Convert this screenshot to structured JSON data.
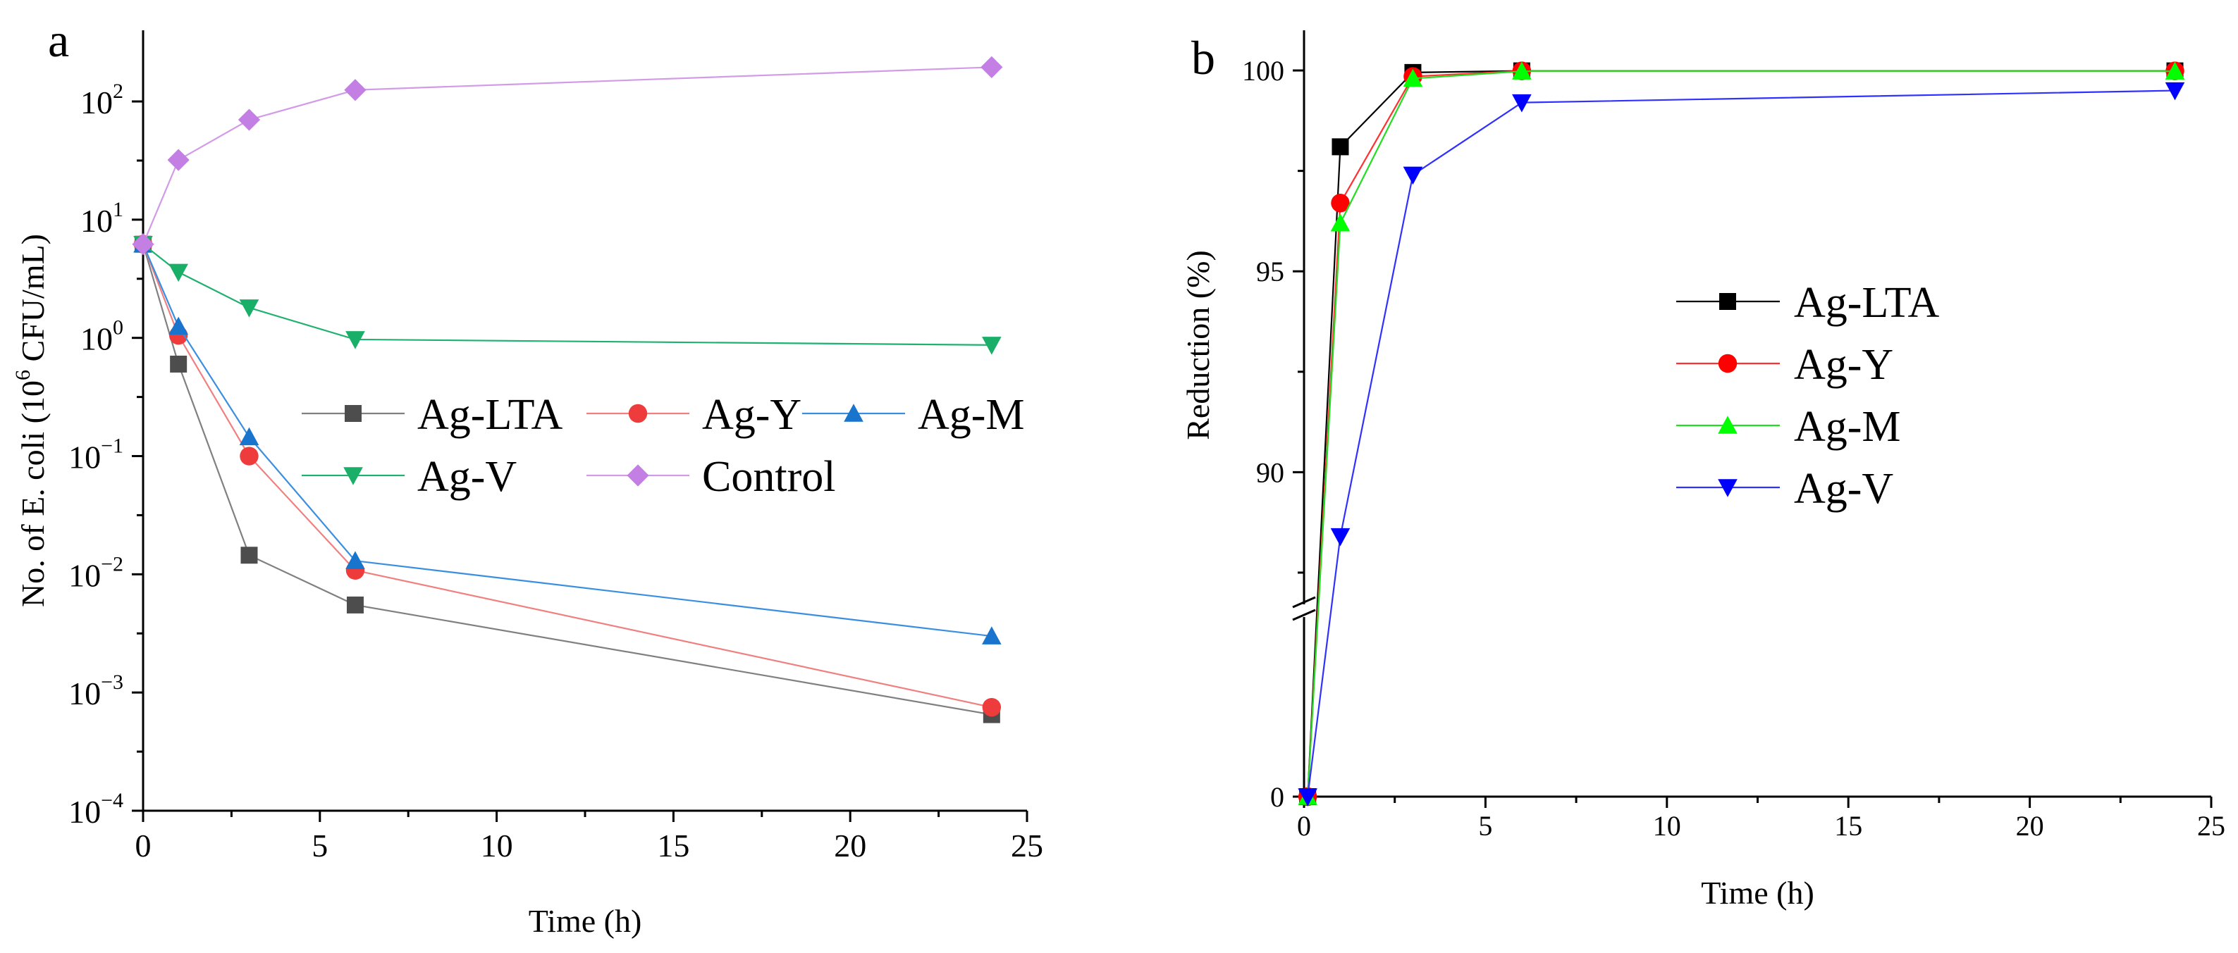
{
  "chart_data": [
    {
      "panel_label": "a",
      "type": "line",
      "y_scale": "log",
      "xlabel": "Time (h)",
      "ylabel_prefix": "No. of E. coli (10",
      "ylabel_sup": "6",
      "ylabel_suffix": " CFU/mL)",
      "xlim": [
        0,
        25
      ],
      "ylim": [
        0.0001,
        400
      ],
      "x_ticks": [
        0,
        5,
        10,
        15,
        20,
        25
      ],
      "x_tick_labels": [
        "0",
        "5",
        "10",
        "15",
        "20",
        "25"
      ],
      "y_ticks": [
        0.0001,
        0.001,
        0.01,
        0.1,
        1,
        10,
        100
      ],
      "y_tick_labels": [
        {
          "base": "10",
          "exp": "−4"
        },
        {
          "base": "10",
          "exp": "−3"
        },
        {
          "base": "10",
          "exp": "−2"
        },
        {
          "base": "10",
          "exp": "−1"
        },
        {
          "base": "10",
          "exp": "0"
        },
        {
          "base": "10",
          "exp": "1"
        },
        {
          "base": "10",
          "exp": "2"
        }
      ],
      "legend": "center-right, two rows",
      "series": [
        {
          "name": "Ag-LTA",
          "marker": "square",
          "line_color": "#808080",
          "marker_color": "#4d4d4d",
          "x": [
            0,
            1,
            3,
            6,
            24
          ],
          "values": [
            6.2,
            0.6,
            0.0145,
            0.0055,
            0.00065
          ]
        },
        {
          "name": "Ag-Y",
          "marker": "circle",
          "line_color": "#f08080",
          "marker_color": "#ee3b3b",
          "x": [
            0,
            1,
            3,
            6,
            24
          ],
          "values": [
            6.2,
            1.05,
            0.1,
            0.0108,
            0.00075
          ]
        },
        {
          "name": "Ag-M",
          "marker": "triangle-up",
          "line_color": "#3a8ee0",
          "marker_color": "#1874cd",
          "x": [
            0,
            1,
            3,
            6,
            24
          ],
          "values": [
            6.2,
            1.25,
            0.145,
            0.013,
            0.003
          ]
        },
        {
          "name": "Ag-V",
          "marker": "triangle-down",
          "line_color": "#20b070",
          "marker_color": "#1aaf68",
          "x": [
            0,
            1,
            3,
            6,
            24
          ],
          "values": [
            6.2,
            3.6,
            1.8,
            0.97,
            0.87
          ]
        },
        {
          "name": "Control",
          "marker": "diamond",
          "line_color": "#d29be8",
          "marker_color": "#c37fe3",
          "x": [
            0,
            1,
            3,
            6,
            24
          ],
          "values": [
            6.2,
            32,
            70,
            125,
            195
          ]
        }
      ]
    },
    {
      "panel_label": "b",
      "type": "line",
      "y_scale": "linear-broken",
      "xlabel": "Time (h)",
      "ylabel": "Reduction (%)",
      "xlim": [
        0,
        25
      ],
      "y_lower_segment": [
        0,
        1
      ],
      "y_upper_segment": [
        86.5,
        101
      ],
      "x_ticks": [
        0,
        5,
        10,
        15,
        20,
        25
      ],
      "x_tick_labels": [
        "0",
        "5",
        "10",
        "15",
        "20",
        "25"
      ],
      "y_ticks": [
        0,
        90,
        95,
        100
      ],
      "y_tick_labels": [
        "0",
        "90",
        "95",
        "100"
      ],
      "legend": "center-right",
      "series": [
        {
          "name": "Ag-LTA",
          "marker": "square",
          "line_color": "#000000",
          "marker_color": "#000000",
          "x": [
            0.1,
            1,
            3,
            6,
            24
          ],
          "values": [
            0,
            98.1,
            99.95,
            99.99,
            99.99
          ]
        },
        {
          "name": "Ag-Y",
          "marker": "circle",
          "line_color": "#ff3030",
          "marker_color": "#ff0000",
          "x": [
            0.1,
            1,
            3,
            6,
            24
          ],
          "values": [
            0,
            96.7,
            99.85,
            99.99,
            99.99
          ]
        },
        {
          "name": "Ag-M",
          "marker": "triangle-up",
          "line_color": "#22dd22",
          "marker_color": "#00ff00",
          "x": [
            0.1,
            1,
            3,
            6,
            24
          ],
          "values": [
            0,
            96.2,
            99.8,
            99.98,
            99.98
          ]
        },
        {
          "name": "Ag-V",
          "marker": "triangle-down",
          "line_color": "#3030ff",
          "marker_color": "#0000ff",
          "x": [
            0.1,
            1,
            3,
            6,
            24
          ],
          "values": [
            0,
            88.4,
            97.4,
            99.2,
            99.5
          ]
        }
      ]
    }
  ]
}
